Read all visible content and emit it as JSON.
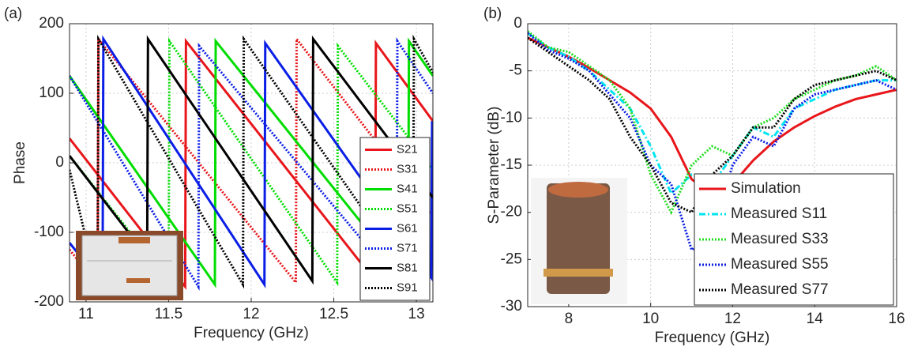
{
  "chart_data": [
    {
      "type": "line",
      "label": "(a)",
      "xlabel": "Frequency (GHz)",
      "ylabel": "Phase",
      "xlim": [
        10.9,
        13.1
      ],
      "xticks": [
        11,
        11.5,
        12,
        12.5,
        13
      ],
      "ylim": [
        -200,
        200
      ],
      "yticks": [
        -200,
        -100,
        0,
        100,
        200
      ],
      "grid": true,
      "legend": "lower right",
      "series": [
        {
          "name": "S21",
          "color": "#e8161b",
          "dash": "solid",
          "x": [
            10.9,
            11.6,
            11.605,
            12.75,
            12.755,
            13.1
          ],
          "values": [
            35,
            -178,
            175,
            -170,
            172,
            60
          ]
        },
        {
          "name": "S31",
          "color": "#e8161b",
          "dash": "dotted",
          "x": [
            10.9,
            11.07,
            11.075,
            12.27,
            12.275,
            13.1
          ],
          "values": [
            -125,
            -175,
            178,
            -172,
            178,
            -75
          ]
        },
        {
          "name": "S41",
          "color": "#00dd00",
          "dash": "solid",
          "x": [
            10.9,
            11.78,
            11.785,
            12.95,
            12.955,
            13.1
          ],
          "values": [
            125,
            -175,
            175,
            -170,
            175,
            125
          ]
        },
        {
          "name": "S51",
          "color": "#00dd00",
          "dash": "dotted",
          "x": [
            10.9,
            11.5,
            11.505,
            12.52,
            12.525,
            13.1
          ],
          "values": [
            10,
            -170,
            175,
            -172,
            168,
            -9
          ]
        },
        {
          "name": "S61",
          "color": "#0a1ee6",
          "dash": "solid",
          "x": [
            10.9,
            11.1,
            11.105,
            12.08,
            12.085,
            13.09,
            13.095
          ],
          "values": [
            -115,
            -175,
            178,
            -175,
            172,
            -165,
            60
          ]
        },
        {
          "name": "S71",
          "color": "#0a1ee6",
          "dash": "dotted",
          "x": [
            10.9,
            11.68,
            11.685,
            12.88,
            12.885,
            13.1
          ],
          "values": [
            125,
            -178,
            168,
            -170,
            175,
            100
          ]
        },
        {
          "name": "S81",
          "color": "#000000",
          "dash": "solid",
          "x": [
            10.9,
            11.37,
            11.375,
            12.37,
            12.375,
            13.1
          ],
          "values": [
            10,
            -135,
            178,
            -170,
            178,
            -50
          ]
        },
        {
          "name": "S91",
          "color": "#000000",
          "dash": "dotted",
          "x": [
            10.9,
            11.07,
            11.075,
            11.95,
            11.955,
            12.98,
            12.985,
            13.1
          ],
          "values": [
            -10,
            -178,
            178,
            -175,
            178,
            -170,
            178,
            130
          ]
        }
      ]
    },
    {
      "type": "line",
      "label": "(b)",
      "xlabel": "Frequency (GHz)",
      "ylabel": "S-Parameter (dB)",
      "xlim": [
        7,
        16
      ],
      "xticks": [
        8,
        10,
        12,
        14,
        16
      ],
      "ylim": [
        -30,
        0
      ],
      "yticks": [
        -30,
        -25,
        -20,
        -15,
        -10,
        -5,
        0
      ],
      "grid": true,
      "legend": "lower right",
      "x": [
        7,
        7.5,
        8,
        8.5,
        9,
        9.5,
        10,
        10.5,
        11,
        11.5,
        12,
        12.5,
        13,
        13.5,
        14,
        14.5,
        15,
        15.5,
        16
      ],
      "series": [
        {
          "name": "Simulation",
          "color": "#e8161b",
          "dash": "solid",
          "values": [
            -1.5,
            -2.5,
            -3.5,
            -4.7,
            -6,
            -7.3,
            -9,
            -12,
            -16.5,
            -18,
            -17,
            -14.5,
            -12.5,
            -11,
            -9.8,
            -8.8,
            -8,
            -7.5,
            -7
          ]
        },
        {
          "name": "Measured S11",
          "color": "#00e5ee",
          "dash": "dashdot",
          "values": [
            -1,
            -2.5,
            -3.5,
            -5,
            -7,
            -9,
            -13,
            -18,
            -16,
            -17,
            -14,
            -11,
            -12,
            -9,
            -8,
            -7,
            -6.5,
            -6,
            -6
          ]
        },
        {
          "name": "Measured S33",
          "color": "#22dd22",
          "dash": "dotted",
          "values": [
            -0.8,
            -2.5,
            -3,
            -4.5,
            -6,
            -9,
            -16,
            -20,
            -15,
            -13,
            -14,
            -11,
            -10,
            -8,
            -7,
            -6,
            -5.5,
            -4.5,
            -6
          ]
        },
        {
          "name": "Measured S55",
          "color": "#0a1ee6",
          "dash": "dotted",
          "values": [
            -1,
            -2.8,
            -3.7,
            -5,
            -7.5,
            -10,
            -15,
            -17,
            -24,
            -22,
            -15,
            -12,
            -13,
            -9,
            -7.5,
            -7,
            -6.5,
            -6,
            -7
          ]
        },
        {
          "name": "Measured S77",
          "color": "#000000",
          "dash": "dotted",
          "values": [
            -1.5,
            -3,
            -4.5,
            -6,
            -8,
            -12,
            -15,
            -19,
            -20,
            -16,
            -14,
            -11,
            -11,
            -8,
            -6.5,
            -6,
            -5.5,
            -5,
            -6
          ]
        }
      ]
    }
  ]
}
